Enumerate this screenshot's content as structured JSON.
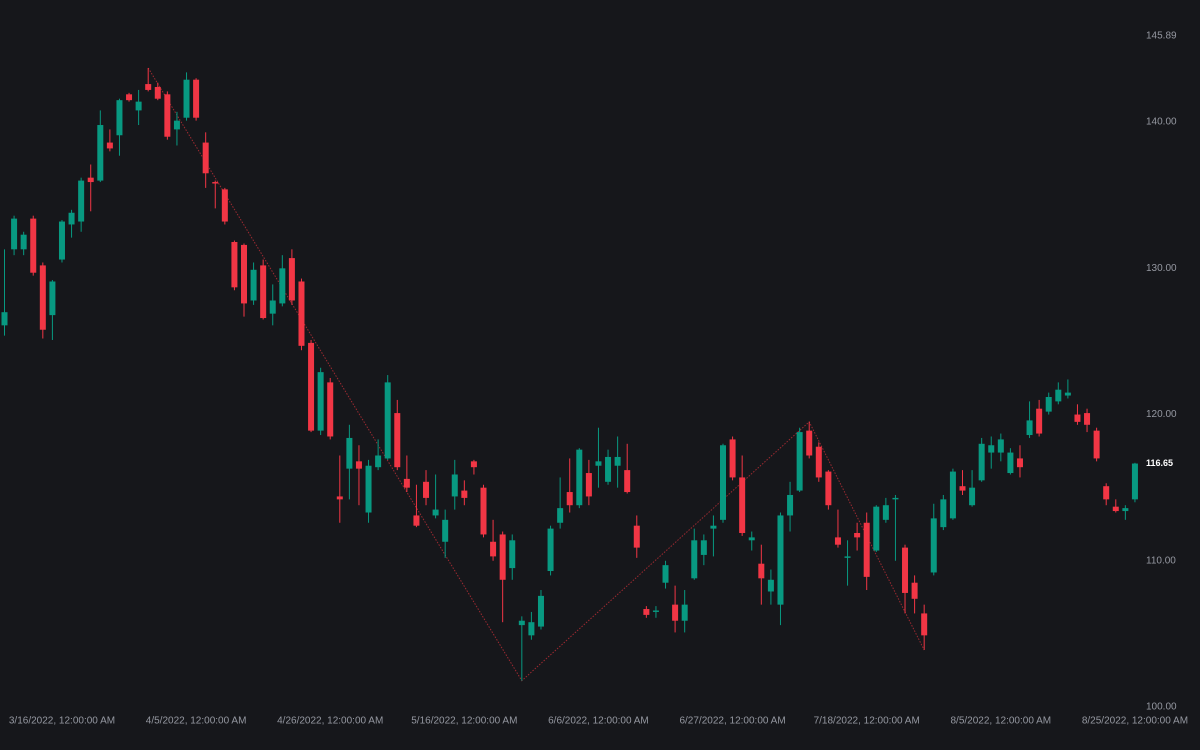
{
  "chart_data": {
    "type": "candlestick",
    "categories": [
      null,
      null,
      null,
      null,
      null,
      null,
      "3/16/2022, 12:00:00 AM",
      null,
      null,
      null,
      null,
      null,
      null,
      null,
      null,
      null,
      null,
      null,
      null,
      null,
      "4/5/2022, 12:00:00 AM",
      null,
      null,
      null,
      null,
      null,
      null,
      null,
      null,
      null,
      null,
      null,
      null,
      null,
      "4/26/2022, 12:00:00 AM",
      null,
      null,
      null,
      null,
      null,
      null,
      null,
      null,
      null,
      null,
      null,
      null,
      null,
      "5/16/2022, 12:00:00 AM",
      null,
      null,
      null,
      null,
      null,
      null,
      null,
      null,
      null,
      null,
      null,
      null,
      null,
      "6/6/2022, 12:00:00 AM",
      null,
      null,
      null,
      null,
      null,
      null,
      null,
      null,
      null,
      null,
      null,
      null,
      null,
      "6/27/2022, 12:00:00 AM",
      null,
      null,
      null,
      null,
      null,
      null,
      null,
      null,
      null,
      null,
      null,
      null,
      null,
      "7/18/2022, 12:00:00 AM",
      null,
      null,
      null,
      null,
      null,
      null,
      null,
      null,
      null,
      null,
      null,
      null,
      null,
      "8/5/2022, 12:00:00 AM",
      null,
      null,
      null,
      null,
      null,
      null,
      null,
      null,
      null,
      null,
      null,
      null,
      null,
      "8/25/2022, 12:00:00 AM"
    ],
    "open": [
      126.1,
      131.3,
      131.3,
      133.4,
      130.2,
      126.8,
      130.6,
      133.0,
      133.2,
      136.2,
      136.0,
      138.6,
      139.1,
      141.9,
      140.8,
      142.6,
      142.4,
      141.9,
      139.5,
      140.3,
      142.9,
      138.6,
      135.9,
      135.4,
      131.8,
      131.6,
      127.8,
      130.2,
      126.9,
      127.6,
      130.7,
      129.1,
      124.9,
      118.9,
      122.2,
      114.4,
      116.3,
      116.8,
      113.3,
      116.4,
      117.0,
      120.1,
      115.6,
      113.1,
      115.4,
      113.1,
      111.3,
      114.4,
      114.8,
      116.8,
      115.0,
      111.3,
      111.8,
      109.5,
      105.6,
      104.9,
      105.5,
      109.3,
      112.6,
      114.7,
      113.8,
      116.0,
      116.5,
      115.4,
      116.5,
      116.2,
      112.4,
      106.7,
      106.5,
      108.5,
      107.0,
      105.9,
      108.8,
      110.4,
      112.2,
      112.8,
      118.3,
      115.7,
      111.4,
      109.8,
      107.9,
      107.0,
      113.1,
      114.8,
      118.9,
      117.8,
      116.1,
      111.6,
      110.2,
      111.9,
      112.6,
      110.7,
      112.8,
      114.2,
      110.9,
      108.5,
      106.4,
      109.2,
      112.3,
      112.9,
      115.1,
      113.8,
      115.5,
      117.4,
      117.4,
      116.0,
      117.0,
      118.6,
      120.4,
      120.2,
      120.9,
      121.3,
      120.0,
      120.1,
      118.9,
      115.1,
      113.7,
      113.4,
      114.2
    ],
    "high": [
      131.3,
      133.6,
      132.5,
      133.6,
      130.4,
      129.2,
      133.3,
      134.0,
      136.2,
      137.1,
      140.8,
      139.5,
      141.6,
      142.0,
      142.2,
      143.7,
      142.7,
      142.1,
      140.7,
      143.4,
      143.0,
      139.3,
      136.0,
      135.5,
      131.9,
      131.7,
      130.4,
      130.6,
      128.9,
      130.9,
      131.3,
      129.3,
      125.1,
      123.2,
      122.5,
      117.2,
      119.3,
      117.9,
      116.9,
      118.3,
      122.7,
      121.0,
      117.2,
      115.2,
      116.2,
      115.9,
      113.5,
      116.9,
      115.5,
      116.9,
      115.2,
      112.8,
      112.0,
      111.8,
      106.2,
      106.5,
      108.0,
      112.4,
      115.7,
      117.0,
      117.7,
      116.9,
      119.1,
      117.6,
      118.5,
      118.0,
      113.1,
      106.9,
      106.9,
      110.0,
      108.3,
      108.0,
      112.2,
      111.8,
      113.1,
      118.0,
      118.5,
      117.2,
      112.0,
      111.1,
      109.4,
      113.3,
      115.4,
      119.1,
      119.5,
      118.1,
      116.2,
      113.5,
      111.4,
      112.6,
      113.3,
      113.8,
      114.3,
      114.5,
      111.1,
      109.0,
      107.0,
      113.9,
      114.5,
      116.3,
      116.2,
      116.2,
      118.4,
      118.5,
      118.7,
      117.7,
      117.9,
      120.9,
      121.0,
      121.5,
      122.2,
      122.4,
      120.7,
      120.4,
      119.1,
      115.3,
      114.2,
      113.8,
      116.7
    ],
    "low": [
      125.4,
      130.9,
      130.9,
      129.5,
      125.2,
      125.1,
      130.4,
      132.1,
      132.5,
      133.9,
      135.9,
      138.0,
      137.7,
      141.4,
      139.8,
      142.1,
      141.5,
      138.8,
      138.4,
      140.1,
      140.1,
      135.5,
      134.1,
      133.0,
      128.5,
      126.7,
      127.5,
      126.5,
      126.1,
      127.4,
      127.5,
      124.4,
      118.8,
      118.6,
      118.3,
      112.6,
      114.2,
      113.8,
      112.6,
      116.2,
      116.9,
      116.2,
      114.7,
      112.3,
      113.8,
      112.9,
      110.2,
      113.5,
      113.8,
      115.9,
      111.6,
      110.0,
      105.8,
      108.7,
      101.8,
      104.6,
      105.3,
      109.0,
      112.2,
      113.3,
      113.6,
      113.8,
      115.0,
      115.2,
      115.0,
      114.6,
      110.2,
      106.1,
      106.1,
      108.1,
      105.1,
      105.1,
      108.7,
      109.7,
      110.3,
      112.6,
      115.5,
      111.7,
      110.7,
      107.0,
      107.0,
      105.6,
      112.0,
      114.7,
      117.0,
      115.4,
      113.5,
      110.9,
      108.3,
      110.7,
      108.0,
      110.6,
      112.6,
      110.0,
      106.4,
      106.4,
      103.9,
      109.0,
      112.1,
      112.8,
      114.5,
      113.7,
      115.4,
      116.3,
      116.8,
      115.9,
      115.7,
      118.4,
      118.5,
      120.0,
      120.7,
      121.1,
      119.3,
      118.8,
      116.8,
      113.8,
      113.3,
      112.8,
      114.0
    ],
    "close": [
      127.0,
      133.4,
      132.3,
      129.7,
      125.8,
      129.1,
      133.2,
      133.8,
      136.0,
      135.9,
      139.8,
      138.2,
      141.5,
      141.5,
      141.4,
      142.2,
      141.6,
      139.0,
      140.1,
      142.9,
      140.3,
      136.5,
      135.8,
      133.2,
      128.7,
      127.6,
      129.9,
      126.6,
      127.8,
      130.0,
      127.8,
      124.7,
      118.9,
      122.9,
      118.5,
      114.2,
      118.4,
      116.3,
      116.5,
      117.2,
      122.2,
      116.4,
      115.0,
      112.4,
      114.3,
      113.5,
      112.8,
      115.9,
      114.3,
      116.4,
      111.8,
      110.3,
      108.7,
      111.4,
      105.9,
      105.8,
      107.6,
      112.2,
      113.6,
      113.8,
      117.6,
      114.4,
      116.8,
      117.1,
      117.1,
      114.7,
      110.9,
      106.3,
      106.6,
      109.7,
      105.9,
      107.0,
      111.4,
      111.4,
      112.4,
      117.9,
      115.7,
      111.9,
      111.6,
      108.8,
      108.7,
      113.1,
      114.5,
      118.8,
      117.2,
      115.7,
      113.8,
      111.1,
      110.3,
      111.6,
      108.9,
      113.7,
      113.8,
      114.3,
      107.8,
      107.4,
      104.9,
      112.9,
      114.2,
      116.1,
      114.8,
      115.0,
      118.0,
      117.9,
      118.3,
      117.4,
      116.4,
      119.6,
      118.7,
      121.2,
      121.7,
      121.5,
      119.5,
      119.3,
      117.0,
      114.2,
      113.4,
      113.6,
      116.65
    ],
    "up_color": "#089981",
    "down_color": "#f23645",
    "zigzag": {
      "color": "#9c2a31",
      "indices": [
        15,
        54,
        84,
        96
      ],
      "values": [
        143.7,
        101.8,
        119.5,
        103.9
      ]
    },
    "ylim": [
      100,
      148.35
    ],
    "yticks": [
      {
        "value": 100,
        "label": "100.00"
      },
      {
        "value": 110,
        "label": "110.00"
      },
      {
        "value": 120,
        "label": "120.00"
      },
      {
        "value": 130,
        "label": "130.00"
      },
      {
        "value": 140,
        "label": "140.00"
      },
      145.89
    ]
  }
}
